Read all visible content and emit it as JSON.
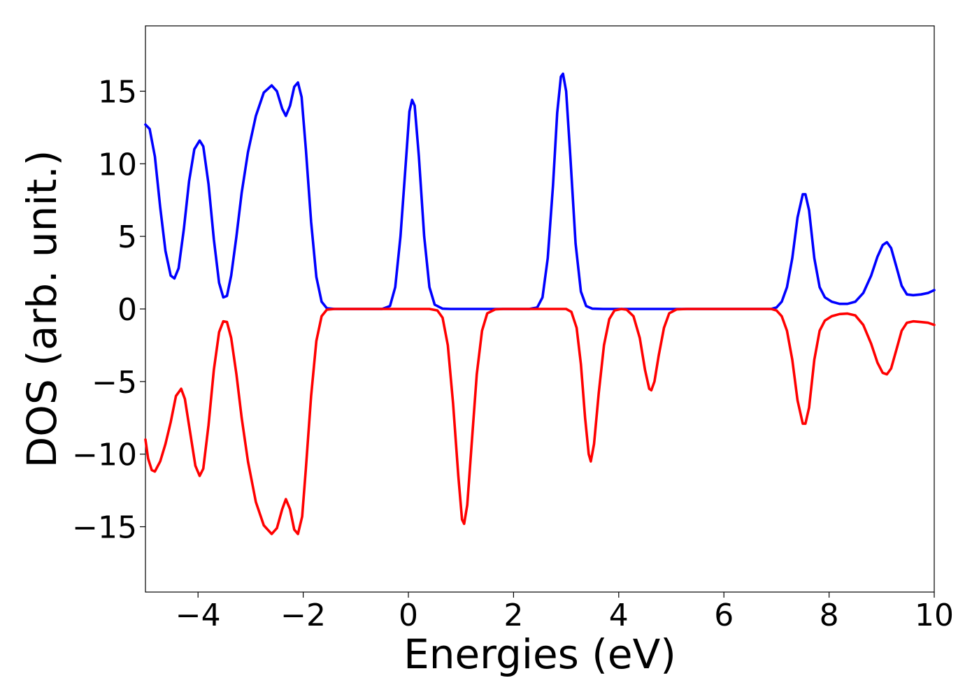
{
  "chart_data": {
    "type": "line",
    "title": "",
    "xlabel": "Energies (eV)",
    "ylabel": "DOS (arb. unit.)",
    "xlim": [
      -5,
      10
    ],
    "ylim": [
      -19.5,
      19.5
    ],
    "xticks": [
      -4,
      -2,
      0,
      2,
      4,
      6,
      8,
      10
    ],
    "yticks": [
      -15,
      -10,
      -5,
      0,
      5,
      10,
      15
    ],
    "xtick_labels": [
      "−4",
      "−2",
      "0",
      "2",
      "4",
      "6",
      "8",
      "10"
    ],
    "ytick_labels": [
      "−15",
      "−10",
      "−5",
      "0",
      "5",
      "10",
      "15"
    ],
    "grid": false,
    "legend": "none",
    "series": [
      {
        "color": "#0000ff",
        "points": [
          [
            -5.0,
            12.7
          ],
          [
            -4.92,
            12.4
          ],
          [
            -4.82,
            10.5
          ],
          [
            -4.72,
            7.0
          ],
          [
            -4.62,
            4.0
          ],
          [
            -4.52,
            2.3
          ],
          [
            -4.45,
            2.1
          ],
          [
            -4.37,
            2.8
          ],
          [
            -4.27,
            5.5
          ],
          [
            -4.17,
            8.8
          ],
          [
            -4.07,
            11.0
          ],
          [
            -3.97,
            11.6
          ],
          [
            -3.9,
            11.2
          ],
          [
            -3.8,
            8.6
          ],
          [
            -3.7,
            4.8
          ],
          [
            -3.6,
            1.8
          ],
          [
            -3.52,
            0.8
          ],
          [
            -3.45,
            0.9
          ],
          [
            -3.37,
            2.3
          ],
          [
            -3.27,
            5.0
          ],
          [
            -3.17,
            8.0
          ],
          [
            -3.05,
            10.8
          ],
          [
            -2.9,
            13.3
          ],
          [
            -2.75,
            14.9
          ],
          [
            -2.6,
            15.4
          ],
          [
            -2.5,
            15.0
          ],
          [
            -2.4,
            13.8
          ],
          [
            -2.33,
            13.3
          ],
          [
            -2.25,
            14.0
          ],
          [
            -2.17,
            15.3
          ],
          [
            -2.1,
            15.6
          ],
          [
            -2.03,
            14.6
          ],
          [
            -1.95,
            11.0
          ],
          [
            -1.85,
            6.0
          ],
          [
            -1.75,
            2.2
          ],
          [
            -1.65,
            0.5
          ],
          [
            -1.55,
            0.05
          ],
          [
            -1.4,
            0.0
          ],
          [
            -0.5,
            0.0
          ],
          [
            -0.35,
            0.2
          ],
          [
            -0.25,
            1.5
          ],
          [
            -0.15,
            5.0
          ],
          [
            -0.05,
            10.0
          ],
          [
            0.02,
            13.6
          ],
          [
            0.07,
            14.4
          ],
          [
            0.12,
            14.0
          ],
          [
            0.2,
            10.5
          ],
          [
            0.3,
            5.0
          ],
          [
            0.4,
            1.5
          ],
          [
            0.5,
            0.3
          ],
          [
            0.65,
            0.02
          ],
          [
            0.8,
            0.0
          ],
          [
            2.3,
            0.0
          ],
          [
            2.45,
            0.1
          ],
          [
            2.55,
            0.8
          ],
          [
            2.65,
            3.5
          ],
          [
            2.75,
            8.5
          ],
          [
            2.83,
            13.5
          ],
          [
            2.9,
            16.0
          ],
          [
            2.94,
            16.2
          ],
          [
            3.0,
            15.0
          ],
          [
            3.08,
            10.5
          ],
          [
            3.18,
            4.5
          ],
          [
            3.28,
            1.2
          ],
          [
            3.38,
            0.2
          ],
          [
            3.5,
            0.02
          ],
          [
            3.7,
            0.0
          ],
          [
            6.9,
            0.0
          ],
          [
            7.0,
            0.1
          ],
          [
            7.1,
            0.5
          ],
          [
            7.2,
            1.5
          ],
          [
            7.3,
            3.5
          ],
          [
            7.4,
            6.3
          ],
          [
            7.5,
            7.9
          ],
          [
            7.55,
            7.9
          ],
          [
            7.62,
            6.8
          ],
          [
            7.72,
            3.5
          ],
          [
            7.82,
            1.5
          ],
          [
            7.92,
            0.8
          ],
          [
            8.05,
            0.5
          ],
          [
            8.2,
            0.35
          ],
          [
            8.35,
            0.35
          ],
          [
            8.5,
            0.5
          ],
          [
            8.65,
            1.1
          ],
          [
            8.8,
            2.3
          ],
          [
            8.92,
            3.6
          ],
          [
            9.02,
            4.4
          ],
          [
            9.1,
            4.6
          ],
          [
            9.18,
            4.2
          ],
          [
            9.28,
            2.9
          ],
          [
            9.38,
            1.6
          ],
          [
            9.48,
            1.0
          ],
          [
            9.6,
            0.95
          ],
          [
            9.75,
            1.0
          ],
          [
            9.88,
            1.1
          ],
          [
            10.0,
            1.3
          ]
        ]
      },
      {
        "color": "#ff0000",
        "points": [
          [
            -5.0,
            -9.0
          ],
          [
            -4.95,
            -10.3
          ],
          [
            -4.88,
            -11.1
          ],
          [
            -4.82,
            -11.2
          ],
          [
            -4.72,
            -10.5
          ],
          [
            -4.62,
            -9.3
          ],
          [
            -4.52,
            -7.8
          ],
          [
            -4.42,
            -6.0
          ],
          [
            -4.32,
            -5.5
          ],
          [
            -4.25,
            -6.2
          ],
          [
            -4.15,
            -8.5
          ],
          [
            -4.05,
            -10.8
          ],
          [
            -3.97,
            -11.5
          ],
          [
            -3.9,
            -11.0
          ],
          [
            -3.8,
            -8.0
          ],
          [
            -3.7,
            -4.2
          ],
          [
            -3.6,
            -1.6
          ],
          [
            -3.52,
            -0.85
          ],
          [
            -3.45,
            -0.9
          ],
          [
            -3.37,
            -2.0
          ],
          [
            -3.27,
            -4.5
          ],
          [
            -3.17,
            -7.5
          ],
          [
            -3.05,
            -10.5
          ],
          [
            -2.9,
            -13.3
          ],
          [
            -2.75,
            -14.9
          ],
          [
            -2.6,
            -15.5
          ],
          [
            -2.5,
            -15.1
          ],
          [
            -2.4,
            -13.8
          ],
          [
            -2.33,
            -13.1
          ],
          [
            -2.25,
            -13.8
          ],
          [
            -2.17,
            -15.2
          ],
          [
            -2.1,
            -15.5
          ],
          [
            -2.02,
            -14.3
          ],
          [
            -1.95,
            -11.0
          ],
          [
            -1.85,
            -6.0
          ],
          [
            -1.75,
            -2.2
          ],
          [
            -1.65,
            -0.5
          ],
          [
            -1.55,
            -0.05
          ],
          [
            -1.4,
            0.0
          ],
          [
            0.4,
            0.0
          ],
          [
            0.55,
            -0.1
          ],
          [
            0.65,
            -0.6
          ],
          [
            0.75,
            -2.5
          ],
          [
            0.85,
            -6.5
          ],
          [
            0.95,
            -11.5
          ],
          [
            1.02,
            -14.5
          ],
          [
            1.06,
            -14.8
          ],
          [
            1.12,
            -13.5
          ],
          [
            1.2,
            -9.5
          ],
          [
            1.3,
            -4.5
          ],
          [
            1.4,
            -1.5
          ],
          [
            1.5,
            -0.3
          ],
          [
            1.65,
            -0.03
          ],
          [
            1.8,
            0.0
          ],
          [
            3.0,
            0.0
          ],
          [
            3.1,
            -0.2
          ],
          [
            3.2,
            -1.3
          ],
          [
            3.28,
            -3.8
          ],
          [
            3.36,
            -7.5
          ],
          [
            3.43,
            -10.0
          ],
          [
            3.47,
            -10.5
          ],
          [
            3.53,
            -9.3
          ],
          [
            3.62,
            -5.8
          ],
          [
            3.72,
            -2.5
          ],
          [
            3.82,
            -0.7
          ],
          [
            3.92,
            -0.1
          ],
          [
            4.05,
            0.0
          ],
          [
            4.15,
            -0.05
          ],
          [
            4.28,
            -0.5
          ],
          [
            4.4,
            -2.0
          ],
          [
            4.5,
            -4.2
          ],
          [
            4.58,
            -5.5
          ],
          [
            4.62,
            -5.6
          ],
          [
            4.68,
            -5.0
          ],
          [
            4.76,
            -3.2
          ],
          [
            4.86,
            -1.3
          ],
          [
            4.96,
            -0.3
          ],
          [
            5.1,
            -0.03
          ],
          [
            5.3,
            0.0
          ],
          [
            6.9,
            0.0
          ],
          [
            7.0,
            -0.1
          ],
          [
            7.1,
            -0.5
          ],
          [
            7.2,
            -1.5
          ],
          [
            7.3,
            -3.5
          ],
          [
            7.4,
            -6.3
          ],
          [
            7.5,
            -7.9
          ],
          [
            7.55,
            -7.9
          ],
          [
            7.62,
            -6.8
          ],
          [
            7.72,
            -3.5
          ],
          [
            7.82,
            -1.5
          ],
          [
            7.92,
            -0.8
          ],
          [
            8.05,
            -0.5
          ],
          [
            8.2,
            -0.35
          ],
          [
            8.35,
            -0.32
          ],
          [
            8.5,
            -0.45
          ],
          [
            8.65,
            -1.1
          ],
          [
            8.8,
            -2.4
          ],
          [
            8.92,
            -3.7
          ],
          [
            9.02,
            -4.4
          ],
          [
            9.1,
            -4.5
          ],
          [
            9.18,
            -4.1
          ],
          [
            9.28,
            -2.8
          ],
          [
            9.38,
            -1.5
          ],
          [
            9.48,
            -0.95
          ],
          [
            9.6,
            -0.85
          ],
          [
            9.75,
            -0.9
          ],
          [
            9.88,
            -0.95
          ],
          [
            10.0,
            -1.1
          ]
        ]
      }
    ]
  }
}
